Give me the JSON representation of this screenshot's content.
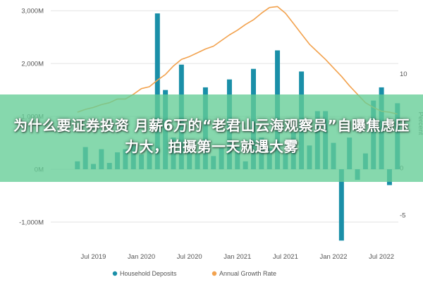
{
  "chart_data": {
    "type": "bar+line",
    "x_tick_labels": [
      "Jul 2019",
      "Jan 2020",
      "Jul 2020",
      "Jan 2021",
      "Jul 2021",
      "Jan 2022",
      "Jul 2022"
    ],
    "left_axis_tick_labels": [
      "3,000M",
      "2,000M",
      "1,000M",
      "0M",
      "-1,000M"
    ],
    "right_axis_tick_labels": [
      "10",
      "5",
      "0",
      "-5"
    ],
    "right_axis_label": "Percent",
    "left_ylim": [
      -1400,
      3150
    ],
    "right_ylim": [
      -8.0,
      17.5
    ],
    "grid": true,
    "legend_position": "bottom",
    "series": [
      {
        "name": "Household Deposits",
        "type": "bar",
        "color": "#1a8fa8",
        "months": [
          "2019-05",
          "2019-06",
          "2019-07",
          "2019-08",
          "2019-09",
          "2019-10",
          "2019-11",
          "2019-12",
          "2020-01",
          "2020-02",
          "2020-03",
          "2020-04",
          "2020-05",
          "2020-06",
          "2020-07",
          "2020-08",
          "2020-09",
          "2020-10",
          "2020-11",
          "2020-12",
          "2021-01",
          "2021-02",
          "2021-03",
          "2021-04",
          "2021-05",
          "2021-06",
          "2021-07",
          "2021-08",
          "2021-09",
          "2021-10",
          "2021-11",
          "2021-12",
          "2022-01",
          "2022-02",
          "2022-03",
          "2022-04",
          "2022-05",
          "2022-06",
          "2022-07",
          "2022-08",
          "2022-09"
        ],
        "values": [
          150,
          420,
          100,
          380,
          120,
          320,
          380,
          450,
          280,
          500,
          2950,
          1500,
          600,
          1980,
          350,
          300,
          1550,
          250,
          400,
          1700,
          450,
          150,
          1900,
          600,
          400,
          2250,
          300,
          700,
          1850,
          450,
          1100,
          1100,
          500,
          -1350,
          600,
          -200,
          300,
          1300,
          1550,
          -300,
          1250
        ]
      },
      {
        "name": "Annual Growth Rate",
        "type": "line",
        "color": "#f2a24e",
        "months": [
          "2019-05",
          "2019-06",
          "2019-07",
          "2019-08",
          "2019-09",
          "2019-10",
          "2019-11",
          "2019-12",
          "2020-01",
          "2020-02",
          "2020-03",
          "2020-04",
          "2020-05",
          "2020-06",
          "2020-07",
          "2020-08",
          "2020-09",
          "2020-10",
          "2020-11",
          "2020-12",
          "2021-01",
          "2021-02",
          "2021-03",
          "2021-04",
          "2021-05",
          "2021-06",
          "2021-07",
          "2021-08",
          "2021-09",
          "2021-10",
          "2021-11",
          "2021-12",
          "2022-01",
          "2022-02",
          "2022-03",
          "2022-04",
          "2022-05",
          "2022-06",
          "2022-07",
          "2022-08",
          "2022-09"
        ],
        "values": [
          5.9,
          6.2,
          6.4,
          6.7,
          6.9,
          7.3,
          7.3,
          7.8,
          8.4,
          8.6,
          9.3,
          9.9,
          10.8,
          11.5,
          11.8,
          12.2,
          12.6,
          12.9,
          13.5,
          14.1,
          14.6,
          15.2,
          15.7,
          16.4,
          17.0,
          17.1,
          16.4,
          15.3,
          14.2,
          13.1,
          12.3,
          11.5,
          10.6,
          9.7,
          8.7,
          7.8,
          6.9,
          6.4,
          6.0,
          5.9,
          5.7
        ]
      }
    ]
  },
  "legend": {
    "deposits_label": "Household Deposits",
    "growth_label": "Annual Growth Rate"
  },
  "overlay": {
    "caption": "为什么要证券投资 月薪6万的“老君山云海观察员”自曝焦虑压力大，拍摄第一天就遇大雾"
  }
}
